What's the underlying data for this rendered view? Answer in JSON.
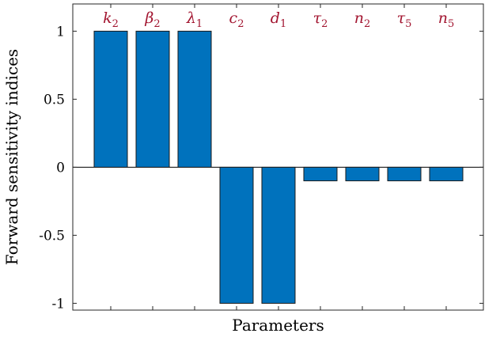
{
  "chart_data": {
    "type": "bar",
    "categories": [
      {
        "base": "k",
        "sub": "2"
      },
      {
        "base": "β",
        "sub": "2"
      },
      {
        "base": "λ",
        "sub": "1"
      },
      {
        "base": "c",
        "sub": "2"
      },
      {
        "base": "d",
        "sub": "1"
      },
      {
        "base": "τ",
        "sub": "2"
      },
      {
        "base": "n",
        "sub": "2"
      },
      {
        "base": "τ",
        "sub": "5"
      },
      {
        "base": "n",
        "sub": "5"
      }
    ],
    "values": [
      1,
      1,
      1,
      -1,
      -1,
      -0.1,
      -0.1,
      -0.1,
      -0.1
    ],
    "xlabel": "Parameters",
    "ylabel": "Forward sensitivity indices",
    "ylim": [
      -1.05,
      1.2
    ],
    "yticks": [
      -1,
      -0.5,
      0,
      0.5,
      1
    ],
    "ytick_labels": [
      "-1",
      "-0.5",
      "0",
      "0.5",
      "1"
    ],
    "grid": false,
    "bar_color": "#0072BD",
    "bar_edge_color": "#1a1a1a",
    "label_color": "#A2142F"
  }
}
